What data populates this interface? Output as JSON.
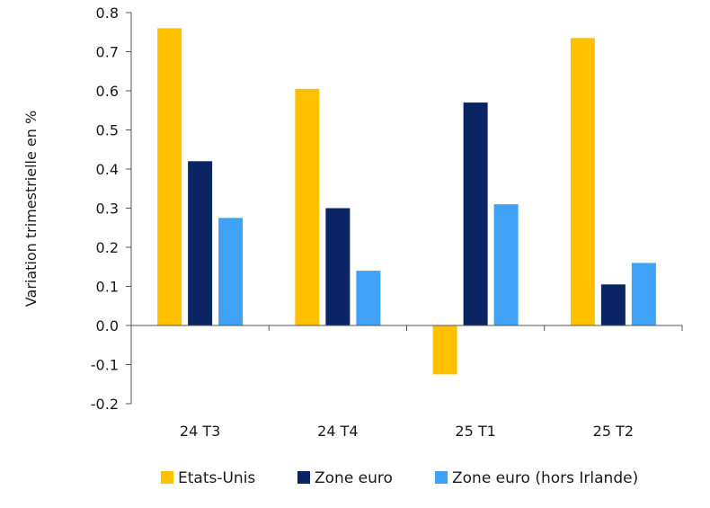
{
  "chart_data": {
    "type": "bar",
    "categories": [
      "24 T3",
      "24 T4",
      "25 T1",
      "25 T2"
    ],
    "series": [
      {
        "name": "Etats-Unis",
        "color": "#FFC000",
        "values": [
          0.76,
          0.605,
          -0.125,
          0.735
        ]
      },
      {
        "name": "Zone euro",
        "color": "#0B2463",
        "values": [
          0.42,
          0.3,
          0.57,
          0.105
        ]
      },
      {
        "name": "Zone euro (hors Irlande)",
        "color": "#3FA2F7",
        "values": [
          0.275,
          0.14,
          0.31,
          0.16
        ]
      }
    ],
    "ylabel": "Variation trimestrielle en %",
    "xlabel": "",
    "title": "",
    "ylim": [
      -0.2,
      0.8
    ],
    "yticks": [
      "0.8",
      "0.7",
      "0.6",
      "0.5",
      "0.4",
      "0.3",
      "0.2",
      "0.1",
      "0.0",
      "-0.1",
      "-0.2"
    ],
    "grid": false,
    "legend_position": "bottom"
  }
}
